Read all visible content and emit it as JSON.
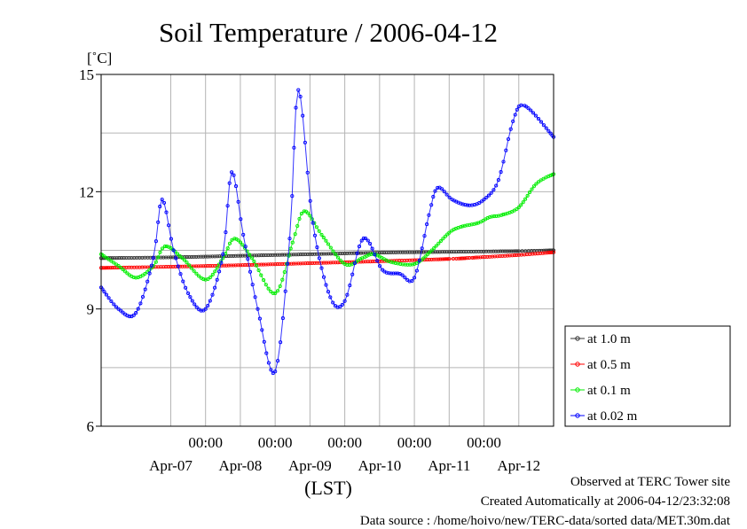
{
  "chart_data": {
    "type": "line",
    "title": "Soil Temperature / 2006-04-12",
    "ylabel": "[˚C]",
    "xlabel": "(LST)",
    "ylim": [
      6,
      15
    ],
    "yticks": [
      6,
      9,
      12,
      15
    ],
    "x_range_days": [
      "2006-04-06 12:00",
      "2006-04-12 24:00"
    ],
    "xticks": [
      {
        "time": "2006-04-08 00:00",
        "label": "00:00"
      },
      {
        "time": "2006-04-09 00:00",
        "label": "00:00"
      },
      {
        "time": "2006-04-10 00:00",
        "label": "00:00"
      },
      {
        "time": "2006-04-11 00:00",
        "label": "00:00"
      },
      {
        "time": "2006-04-12 00:00",
        "label": "00:00"
      }
    ],
    "day_labels": [
      {
        "time": "2006-04-07 12:00",
        "label": "Apr-07"
      },
      {
        "time": "2006-04-08 12:00",
        "label": "Apr-08"
      },
      {
        "time": "2006-04-09 12:00",
        "label": "Apr-09"
      },
      {
        "time": "2006-04-10 12:00",
        "label": "Apr-10"
      },
      {
        "time": "2006-04-11 12:00",
        "label": "Apr-11"
      },
      {
        "time": "2006-04-12 12:00",
        "label": "Apr-12"
      }
    ],
    "grid": true,
    "legend_position": "right",
    "series": [
      {
        "name": "at 1.0 m",
        "color": "#333333",
        "points": [
          [
            "2006-04-06 12:00",
            10.3
          ],
          [
            "2006-04-07 12:00",
            10.32
          ],
          [
            "2006-04-08 12:00",
            10.36
          ],
          [
            "2006-04-09 12:00",
            10.4
          ],
          [
            "2006-04-10 12:00",
            10.44
          ],
          [
            "2006-04-11 12:00",
            10.46
          ],
          [
            "2006-04-12 12:00",
            10.48
          ],
          [
            "2006-04-12 24:00",
            10.5
          ]
        ]
      },
      {
        "name": "at 0.5 m",
        "color": "#ff0000",
        "points": [
          [
            "2006-04-06 12:00",
            10.05
          ],
          [
            "2006-04-07 12:00",
            10.08
          ],
          [
            "2006-04-08 12:00",
            10.12
          ],
          [
            "2006-04-09 12:00",
            10.17
          ],
          [
            "2006-04-10 12:00",
            10.22
          ],
          [
            "2006-04-11 12:00",
            10.28
          ],
          [
            "2006-04-11 20:00",
            10.31
          ],
          [
            "2006-04-12 12:00",
            10.38
          ],
          [
            "2006-04-12 24:00",
            10.45
          ]
        ]
      },
      {
        "name": "at 0.1 m",
        "color": "#00ee00",
        "points": [
          [
            "2006-04-06 12:00",
            10.4
          ],
          [
            "2006-04-06 18:00",
            10.1
          ],
          [
            "2006-04-07 00:00",
            9.8
          ],
          [
            "2006-04-07 06:00",
            10.1
          ],
          [
            "2006-04-07 10:00",
            10.6
          ],
          [
            "2006-04-07 16:00",
            10.3
          ],
          [
            "2006-04-08 00:00",
            9.75
          ],
          [
            "2006-04-08 06:00",
            10.3
          ],
          [
            "2006-04-08 10:00",
            10.8
          ],
          [
            "2006-04-08 16:00",
            10.3
          ],
          [
            "2006-04-09 00:00",
            9.4
          ],
          [
            "2006-04-09 06:00",
            10.7
          ],
          [
            "2006-04-09 10:00",
            11.5
          ],
          [
            "2006-04-09 16:00",
            10.9
          ],
          [
            "2006-04-10 00:00",
            10.15
          ],
          [
            "2006-04-10 06:00",
            10.3
          ],
          [
            "2006-04-10 10:00",
            10.4
          ],
          [
            "2006-04-10 16:00",
            10.2
          ],
          [
            "2006-04-11 00:00",
            10.15
          ],
          [
            "2006-04-11 06:00",
            10.5
          ],
          [
            "2006-04-11 12:00",
            10.95
          ],
          [
            "2006-04-11 16:00",
            11.1
          ],
          [
            "2006-04-11 22:00",
            11.2
          ],
          [
            "2006-04-12 02:00",
            11.35
          ],
          [
            "2006-04-12 06:00",
            11.4
          ],
          [
            "2006-04-12 12:00",
            11.6
          ],
          [
            "2006-04-12 18:00",
            12.2
          ],
          [
            "2006-04-12 24:00",
            12.45
          ]
        ]
      },
      {
        "name": "at 0.02 m",
        "color": "#0000ff",
        "points": [
          [
            "2006-04-06 12:00",
            9.55
          ],
          [
            "2006-04-06 18:00",
            9.0
          ],
          [
            "2006-04-07 00:00",
            8.9
          ],
          [
            "2006-04-07 06:00",
            10.3
          ],
          [
            "2006-04-07 09:00",
            11.8
          ],
          [
            "2006-04-07 13:00",
            10.5
          ],
          [
            "2006-04-07 18:00",
            9.4
          ],
          [
            "2006-04-08 00:00",
            9.0
          ],
          [
            "2006-04-08 06:00",
            10.4
          ],
          [
            "2006-04-08 09:00",
            12.5
          ],
          [
            "2006-04-08 13:00",
            10.9
          ],
          [
            "2006-04-08 18:00",
            9.0
          ],
          [
            "2006-04-09 00:00",
            7.4
          ],
          [
            "2006-04-09 05:00",
            10.8
          ],
          [
            "2006-04-09 08:00",
            14.6
          ],
          [
            "2006-04-09 13:00",
            11.2
          ],
          [
            "2006-04-09 19:00",
            9.3
          ],
          [
            "2006-04-10 00:00",
            9.2
          ],
          [
            "2006-04-10 05:00",
            10.6
          ],
          [
            "2006-04-10 08:00",
            10.75
          ],
          [
            "2006-04-10 13:00",
            10.0
          ],
          [
            "2006-04-10 19:00",
            9.9
          ],
          [
            "2006-04-11 00:00",
            9.8
          ],
          [
            "2006-04-11 05:00",
            11.4
          ],
          [
            "2006-04-11 08:00",
            12.1
          ],
          [
            "2006-04-11 13:00",
            11.8
          ],
          [
            "2006-04-11 19:00",
            11.65
          ],
          [
            "2006-04-12 00:00",
            11.8
          ],
          [
            "2006-04-12 05:00",
            12.3
          ],
          [
            "2006-04-12 10:00",
            13.8
          ],
          [
            "2006-04-12 14:00",
            14.2
          ],
          [
            "2006-04-12 24:00",
            13.4
          ]
        ]
      }
    ]
  },
  "footer": {
    "line1": "Observed at TERC Tower site",
    "line2": "Created Automatically at 2006-04-12/23:32:08",
    "line3": "Data source : /home/hoivo/new/TERC-data/sorted  data/MET.30m.dat"
  }
}
